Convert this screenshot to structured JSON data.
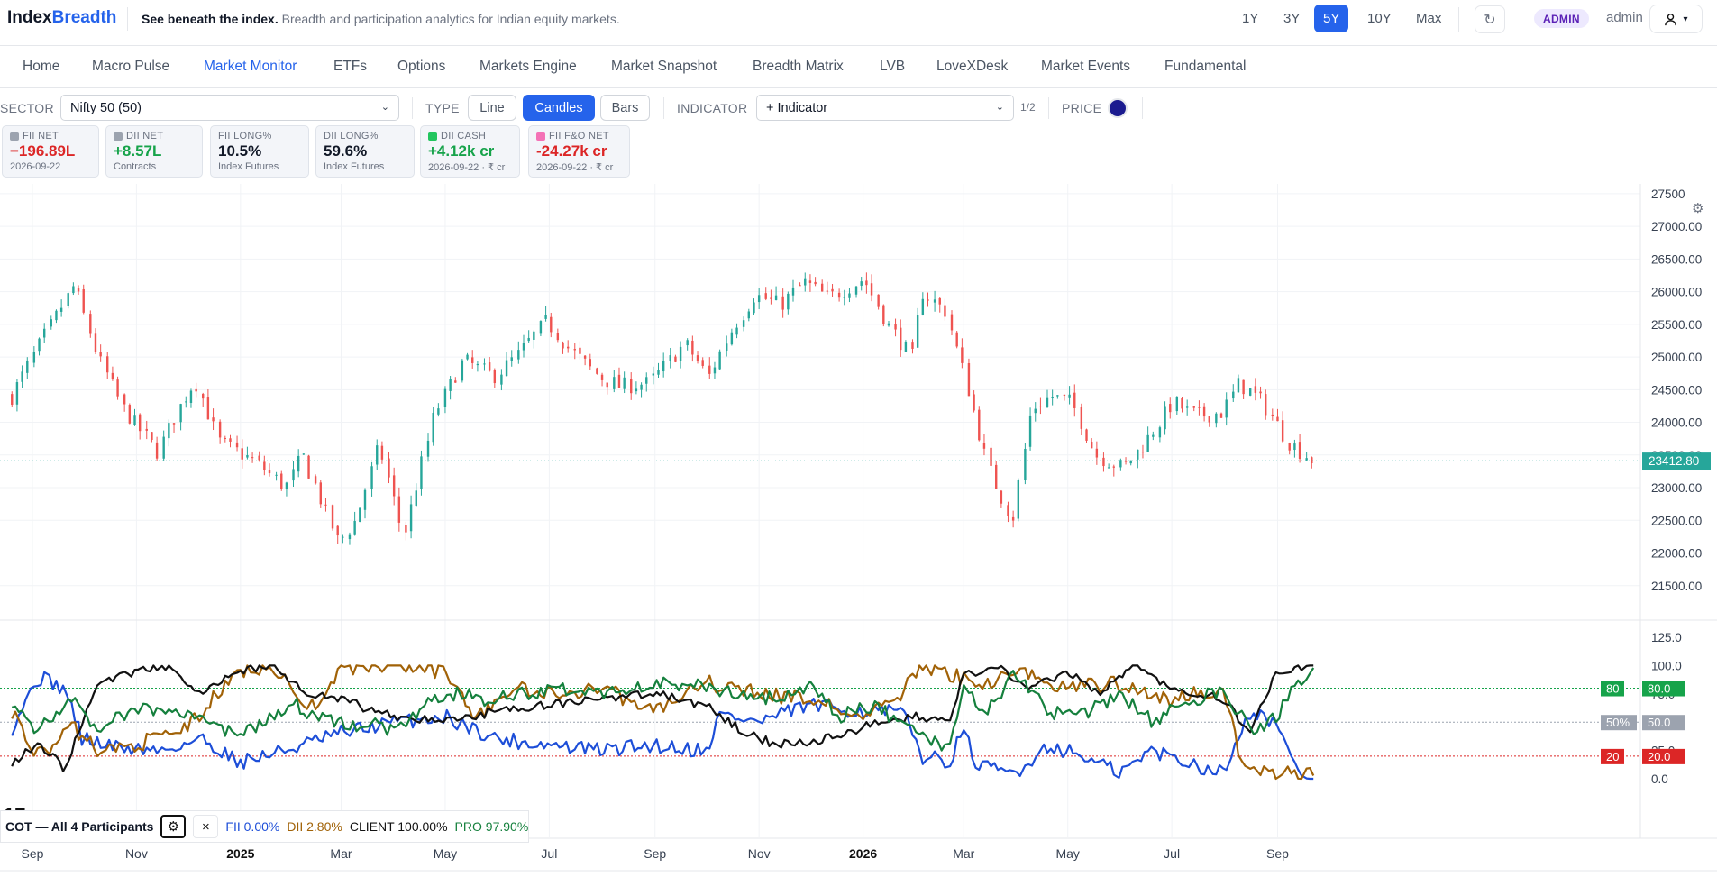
{
  "header": {
    "brand_a": "Index",
    "brand_b": "Breadth",
    "tagline_bold": "See beneath the index.",
    "tagline_rest": "Breadth and participation analytics for Indian equity markets.",
    "ranges": [
      "1Y",
      "3Y",
      "5Y",
      "10Y",
      "Max"
    ],
    "active_range": "5Y",
    "refresh_icon": "↻",
    "badge": "ADMIN",
    "user": "admin"
  },
  "nav": {
    "items": [
      "Home",
      "Macro Pulse",
      "Market Monitor",
      "ETFs",
      "Options",
      "Markets Engine",
      "Market Snapshot",
      "Breadth Matrix",
      "LVB",
      "LoveXDesk",
      "Market Events",
      "Fundamental"
    ],
    "active": "Market Monitor"
  },
  "controls": {
    "sector_label": "SECTOR",
    "sector_value": "Nifty 50 (50)",
    "type_label": "TYPE",
    "types": [
      "Line",
      "Candles",
      "Bars"
    ],
    "active_type": "Candles",
    "indicator_label": "INDICATOR",
    "indicator_value": "+ Indicator",
    "pager": "1/2",
    "price_label": "PRICE",
    "price_color": "#1b1b8f"
  },
  "cards": [
    {
      "label": "FII NET",
      "value": "−196.89L",
      "sub": "2026-09-22",
      "tone": "neg",
      "icon_color": "#9ca3af"
    },
    {
      "label": "DII NET",
      "value": "+8.57L",
      "sub": "Contracts",
      "tone": "pos",
      "icon_color": "#9ca3af"
    },
    {
      "label": "FII LONG%",
      "value": "10.5%",
      "sub": "Index Futures",
      "tone": "neu",
      "icon_color": ""
    },
    {
      "label": "DII LONG%",
      "value": "59.6%",
      "sub": "Index Futures",
      "tone": "neu",
      "icon_color": ""
    },
    {
      "label": "DII CASH",
      "value": "+4.12k cr",
      "sub": "2026-09-22 · ₹ cr",
      "tone": "pos",
      "icon_color": "#22c55e"
    },
    {
      "label": "FII F&O NET",
      "value": "-24.27k cr",
      "sub": "2026-09-22 · ₹ cr",
      "tone": "neg",
      "icon_color": "#f472b6"
    }
  ],
  "chart_data": [
    {
      "type": "candlestick",
      "series_label": "Nifty 50",
      "y_ticks": [
        "27500",
        "27000.00",
        "26500.00",
        "26000.00",
        "25500.00",
        "25000.00",
        "24500.00",
        "24000.00",
        "23500.00",
        "23000.00",
        "22500.00",
        "22000.00",
        "21500.00"
      ],
      "ylim": [
        21000,
        27650
      ],
      "last_price": "23412.80",
      "close_path": [
        [
          "2024-08-20",
          24400
        ],
        [
          "2024-09-05",
          25150
        ],
        [
          "2024-09-26",
          26100
        ],
        [
          "2024-10-10",
          25000
        ],
        [
          "2024-10-25",
          24200
        ],
        [
          "2024-11-14",
          23550
        ],
        [
          "2024-11-28",
          24300
        ],
        [
          "2024-12-06",
          24650
        ],
        [
          "2024-12-20",
          23700
        ],
        [
          "2025-01-10",
          23400
        ],
        [
          "2025-01-28",
          23000
        ],
        [
          "2025-02-07",
          23500
        ],
        [
          "2025-02-28",
          22150
        ],
        [
          "2025-03-10",
          22500
        ],
        [
          "2025-03-24",
          23650
        ],
        [
          "2025-04-07",
          22250
        ],
        [
          "2025-04-25",
          24100
        ],
        [
          "2025-05-12",
          24950
        ],
        [
          "2025-05-30",
          24700
        ],
        [
          "2025-06-12",
          25000
        ],
        [
          "2025-06-30",
          25550
        ],
        [
          "2025-07-14",
          25100
        ],
        [
          "2025-07-31",
          24700
        ],
        [
          "2025-08-12",
          24550
        ],
        [
          "2025-08-29",
          24600
        ],
        [
          "2025-09-19",
          25200
        ],
        [
          "2025-10-03",
          24700
        ],
        [
          "2025-10-15",
          25350
        ],
        [
          "2025-10-30",
          25950
        ],
        [
          "2025-11-14",
          25800
        ],
        [
          "2025-11-28",
          26150
        ],
        [
          "2025-12-12",
          25900
        ],
        [
          "2026-01-02",
          26200
        ],
        [
          "2026-01-16",
          25500
        ],
        [
          "2026-01-30",
          25000
        ],
        [
          "2026-02-05",
          26000
        ],
        [
          "2026-02-19",
          25700
        ],
        [
          "2026-03-02",
          24700
        ],
        [
          "2026-03-16",
          23300
        ],
        [
          "2026-03-30",
          22500
        ],
        [
          "2026-04-10",
          24200
        ],
        [
          "2026-04-22",
          24400
        ],
        [
          "2026-05-04",
          24300
        ],
        [
          "2026-05-18",
          23500
        ],
        [
          "2026-06-03",
          23300
        ],
        [
          "2026-06-19",
          23800
        ],
        [
          "2026-07-02",
          24300
        ],
        [
          "2026-07-16",
          24100
        ],
        [
          "2026-07-31",
          24150
        ],
        [
          "2026-08-10",
          24600
        ],
        [
          "2026-08-24",
          24300
        ],
        [
          "2026-09-08",
          23700
        ],
        [
          "2026-09-22",
          23412.8
        ]
      ]
    },
    {
      "type": "line",
      "title": "COT — All 4 Participants",
      "y_ticks": [
        "125.0",
        "100.0",
        "75.0",
        "50.0",
        "25.0",
        "0.0"
      ],
      "ylim": [
        0,
        125
      ],
      "reference_lines": [
        {
          "value": 80,
          "tag": "80",
          "label": "80.0",
          "color": "#16a34a"
        },
        {
          "value": 50,
          "tag": "50%",
          "label": "50.0",
          "color": "#9ca3af"
        },
        {
          "value": 20,
          "tag": "20",
          "label": "20.0",
          "color": "#dc2626"
        }
      ],
      "series": [
        {
          "name": "FII",
          "value": "0.00%",
          "color": "#1d4ed8",
          "values": [
            [
              "2024-08-20",
              45
            ],
            [
              "2024-09-05",
              90
            ],
            [
              "2024-09-20",
              80
            ],
            [
              "2024-10-01",
              35
            ],
            [
              "2024-10-20",
              28
            ],
            [
              "2024-11-15",
              25
            ],
            [
              "2024-12-10",
              35
            ],
            [
              "2025-01-01",
              15
            ],
            [
              "2025-02-01",
              27
            ],
            [
              "2025-03-01",
              40
            ],
            [
              "2025-04-01",
              50
            ],
            [
              "2025-05-01",
              55
            ],
            [
              "2025-06-01",
              35
            ],
            [
              "2025-07-01",
              30
            ],
            [
              "2025-08-01",
              25
            ],
            [
              "2025-09-01",
              30
            ],
            [
              "2025-10-01",
              25
            ],
            [
              "2025-10-10",
              57
            ],
            [
              "2025-11-01",
              50
            ],
            [
              "2025-12-01",
              65
            ],
            [
              "2026-01-01",
              60
            ],
            [
              "2026-01-25",
              58
            ],
            [
              "2026-02-05",
              20
            ],
            [
              "2026-02-20",
              15
            ],
            [
              "2026-03-01",
              40
            ],
            [
              "2026-03-10",
              10
            ],
            [
              "2026-04-01",
              5
            ],
            [
              "2026-04-20",
              30
            ],
            [
              "2026-05-10",
              20
            ],
            [
              "2026-06-01",
              5
            ],
            [
              "2026-06-20",
              25
            ],
            [
              "2026-07-10",
              15
            ],
            [
              "2026-08-01",
              5
            ],
            [
              "2026-08-15",
              60
            ],
            [
              "2026-09-01",
              50
            ],
            [
              "2026-09-10",
              10
            ],
            [
              "2026-09-22",
              0
            ]
          ]
        },
        {
          "name": "DII",
          "value": "2.80%",
          "color": "#a16207",
          "values": [
            [
              "2024-08-20",
              60
            ],
            [
              "2024-09-05",
              20
            ],
            [
              "2024-09-25",
              45
            ],
            [
              "2024-10-10",
              25
            ],
            [
              "2024-11-01",
              30
            ],
            [
              "2024-12-01",
              45
            ],
            [
              "2025-01-01",
              95
            ],
            [
              "2025-01-20",
              100
            ],
            [
              "2025-02-10",
              60
            ],
            [
              "2025-03-01",
              95
            ],
            [
              "2025-04-01",
              100
            ],
            [
              "2025-05-01",
              95
            ],
            [
              "2025-05-20",
              55
            ],
            [
              "2025-06-10",
              80
            ],
            [
              "2025-07-01",
              75
            ],
            [
              "2025-08-01",
              80
            ],
            [
              "2025-09-01",
              60
            ],
            [
              "2025-10-01",
              85
            ],
            [
              "2025-11-01",
              75
            ],
            [
              "2025-12-01",
              70
            ],
            [
              "2026-01-01",
              55
            ],
            [
              "2026-01-20",
              68
            ],
            [
              "2026-02-05",
              100
            ],
            [
              "2026-02-25",
              90
            ],
            [
              "2026-03-15",
              85
            ],
            [
              "2026-04-01",
              95
            ],
            [
              "2026-05-01",
              80
            ],
            [
              "2026-06-01",
              85
            ],
            [
              "2026-07-01",
              70
            ],
            [
              "2026-08-01",
              80
            ],
            [
              "2026-08-10",
              20
            ],
            [
              "2026-08-25",
              5
            ],
            [
              "2026-09-22",
              2.8
            ]
          ]
        },
        {
          "name": "CLIENT",
          "value": "100.00%",
          "color": "#111111",
          "values": [
            [
              "2024-08-20",
              15
            ],
            [
              "2024-09-05",
              30
            ],
            [
              "2024-09-20",
              10
            ],
            [
              "2024-10-10",
              85
            ],
            [
              "2024-11-01",
              95
            ],
            [
              "2024-11-20",
              100
            ],
            [
              "2024-12-10",
              75
            ],
            [
              "2025-01-01",
              95
            ],
            [
              "2025-01-20",
              100
            ],
            [
              "2025-02-10",
              75
            ],
            [
              "2025-03-01",
              70
            ],
            [
              "2025-04-01",
              55
            ],
            [
              "2025-05-01",
              50
            ],
            [
              "2025-06-01",
              60
            ],
            [
              "2025-07-01",
              65
            ],
            [
              "2025-08-01",
              70
            ],
            [
              "2025-09-01",
              75
            ],
            [
              "2025-10-01",
              65
            ],
            [
              "2025-10-20",
              45
            ],
            [
              "2025-11-10",
              30
            ],
            [
              "2025-12-10",
              35
            ],
            [
              "2026-01-10",
              50
            ],
            [
              "2026-02-01",
              55
            ],
            [
              "2026-02-20",
              50
            ],
            [
              "2026-03-01",
              90
            ],
            [
              "2026-03-20",
              100
            ],
            [
              "2026-04-10",
              80
            ],
            [
              "2026-05-01",
              95
            ],
            [
              "2026-05-20",
              75
            ],
            [
              "2026-06-10",
              100
            ],
            [
              "2026-07-01",
              80
            ],
            [
              "2026-08-01",
              70
            ],
            [
              "2026-08-15",
              40
            ],
            [
              "2026-09-01",
              95
            ],
            [
              "2026-09-22",
              100
            ]
          ]
        },
        {
          "name": "PRO",
          "value": "97.90%",
          "color": "#15803d",
          "values": [
            [
              "2024-08-20",
              70
            ],
            [
              "2024-09-05",
              40
            ],
            [
              "2024-09-25",
              75
            ],
            [
              "2024-10-10",
              40
            ],
            [
              "2024-11-01",
              65
            ],
            [
              "2024-12-01",
              55
            ],
            [
              "2025-01-01",
              40
            ],
            [
              "2025-02-01",
              65
            ],
            [
              "2025-03-01",
              50
            ],
            [
              "2025-04-01",
              45
            ],
            [
              "2025-05-01",
              75
            ],
            [
              "2025-06-01",
              70
            ],
            [
              "2025-07-01",
              80
            ],
            [
              "2025-08-01",
              75
            ],
            [
              "2025-09-01",
              85
            ],
            [
              "2025-10-01",
              80
            ],
            [
              "2025-11-01",
              70
            ],
            [
              "2025-12-01",
              80
            ],
            [
              "2025-12-20",
              55
            ],
            [
              "2026-01-10",
              65
            ],
            [
              "2026-02-01",
              40
            ],
            [
              "2026-02-20",
              30
            ],
            [
              "2026-03-01",
              80
            ],
            [
              "2026-03-15",
              60
            ],
            [
              "2026-04-01",
              95
            ],
            [
              "2026-04-20",
              60
            ],
            [
              "2026-05-10",
              55
            ],
            [
              "2026-06-01",
              75
            ],
            [
              "2026-06-20",
              50
            ],
            [
              "2026-07-10",
              70
            ],
            [
              "2026-08-01",
              75
            ],
            [
              "2026-08-20",
              40
            ],
            [
              "2026-09-01",
              55
            ],
            [
              "2026-09-10",
              80
            ],
            [
              "2026-09-22",
              97.9
            ]
          ]
        }
      ]
    }
  ],
  "x_axis": [
    {
      "label": "Sep",
      "date": "2024-09-01",
      "bold": false
    },
    {
      "label": "Nov",
      "date": "2024-11-01",
      "bold": false
    },
    {
      "label": "2025",
      "date": "2025-01-01",
      "bold": true
    },
    {
      "label": "Mar",
      "date": "2025-03-01",
      "bold": false
    },
    {
      "label": "May",
      "date": "2025-05-01",
      "bold": false
    },
    {
      "label": "Jul",
      "date": "2025-07-01",
      "bold": false
    },
    {
      "label": "Sep",
      "date": "2025-09-01",
      "bold": false
    },
    {
      "label": "Nov",
      "date": "2025-11-01",
      "bold": false
    },
    {
      "label": "2026",
      "date": "2026-01-01",
      "bold": true
    },
    {
      "label": "Mar",
      "date": "2026-03-01",
      "bold": false
    },
    {
      "label": "May",
      "date": "2026-05-01",
      "bold": false
    },
    {
      "label": "Jul",
      "date": "2026-07-01",
      "bold": false
    },
    {
      "label": "Sep",
      "date": "2026-09-01",
      "bold": false
    }
  ],
  "legend": {
    "title": "COT — All 4 Participants",
    "gear_icon": "⚙",
    "close_icon": "×"
  }
}
